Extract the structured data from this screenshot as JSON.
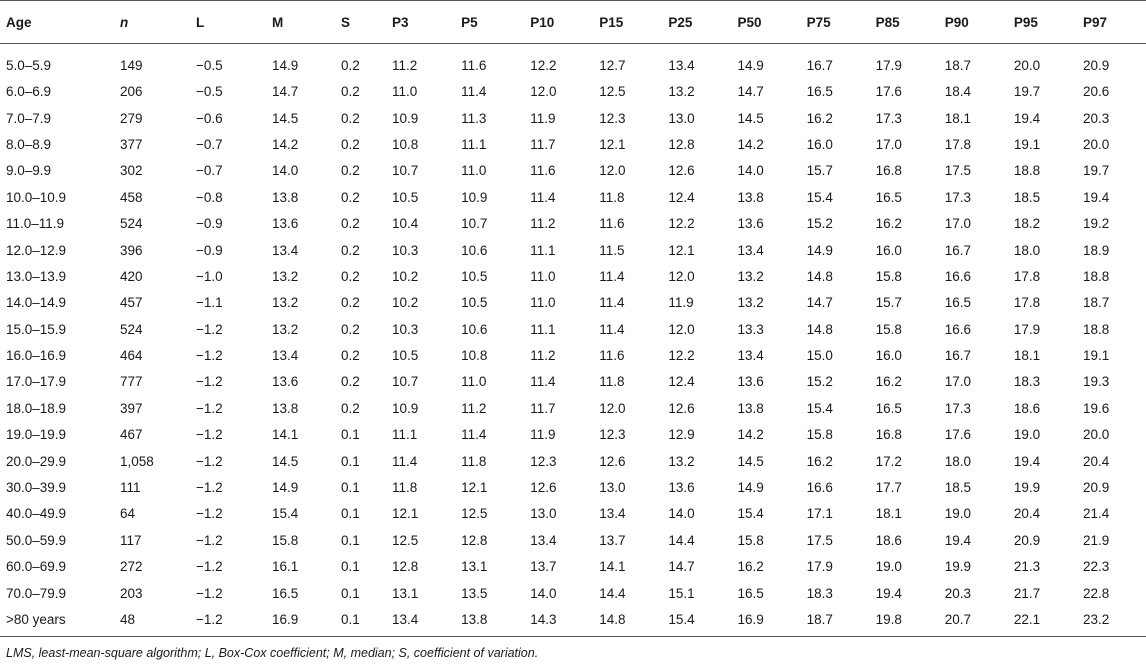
{
  "table": {
    "headers": [
      "Age",
      "n",
      "L",
      "M",
      "S",
      "P3",
      "P5",
      "P10",
      "P15",
      "P25",
      "P50",
      "P75",
      "P85",
      "P90",
      "P95",
      "P97"
    ],
    "rows": [
      [
        "5.0–5.9",
        "149",
        "−0.5",
        "14.9",
        "0.2",
        "11.2",
        "11.6",
        "12.2",
        "12.7",
        "13.4",
        "14.9",
        "16.7",
        "17.9",
        "18.7",
        "20.0",
        "20.9"
      ],
      [
        "6.0–6.9",
        "206",
        "−0.5",
        "14.7",
        "0.2",
        "11.0",
        "11.4",
        "12.0",
        "12.5",
        "13.2",
        "14.7",
        "16.5",
        "17.6",
        "18.4",
        "19.7",
        "20.6"
      ],
      [
        "7.0–7.9",
        "279",
        "−0.6",
        "14.5",
        "0.2",
        "10.9",
        "11.3",
        "11.9",
        "12.3",
        "13.0",
        "14.5",
        "16.2",
        "17.3",
        "18.1",
        "19.4",
        "20.3"
      ],
      [
        "8.0–8.9",
        "377",
        "−0.7",
        "14.2",
        "0.2",
        "10.8",
        "11.1",
        "11.7",
        "12.1",
        "12.8",
        "14.2",
        "16.0",
        "17.0",
        "17.8",
        "19.1",
        "20.0"
      ],
      [
        "9.0–9.9",
        "302",
        "−0.7",
        "14.0",
        "0.2",
        "10.7",
        "11.0",
        "11.6",
        "12.0",
        "12.6",
        "14.0",
        "15.7",
        "16.8",
        "17.5",
        "18.8",
        "19.7"
      ],
      [
        "10.0–10.9",
        "458",
        "−0.8",
        "13.8",
        "0.2",
        "10.5",
        "10.9",
        "11.4",
        "11.8",
        "12.4",
        "13.8",
        "15.4",
        "16.5",
        "17.3",
        "18.5",
        "19.4"
      ],
      [
        "11.0–11.9",
        "524",
        "−0.9",
        "13.6",
        "0.2",
        "10.4",
        "10.7",
        "11.2",
        "11.6",
        "12.2",
        "13.6",
        "15.2",
        "16.2",
        "17.0",
        "18.2",
        "19.2"
      ],
      [
        "12.0–12.9",
        "396",
        "−0.9",
        "13.4",
        "0.2",
        "10.3",
        "10.6",
        "11.1",
        "11.5",
        "12.1",
        "13.4",
        "14.9",
        "16.0",
        "16.7",
        "18.0",
        "18.9"
      ],
      [
        "13.0–13.9",
        "420",
        "−1.0",
        "13.2",
        "0.2",
        "10.2",
        "10.5",
        "11.0",
        "11.4",
        "12.0",
        "13.2",
        "14.8",
        "15.8",
        "16.6",
        "17.8",
        "18.8"
      ],
      [
        "14.0–14.9",
        "457",
        "−1.1",
        "13.2",
        "0.2",
        "10.2",
        "10.5",
        "11.0",
        "11.4",
        "11.9",
        "13.2",
        "14.7",
        "15.7",
        "16.5",
        "17.8",
        "18.7"
      ],
      [
        "15.0–15.9",
        "524",
        "−1.2",
        "13.2",
        "0.2",
        "10.3",
        "10.6",
        "11.1",
        "11.4",
        "12.0",
        "13.3",
        "14.8",
        "15.8",
        "16.6",
        "17.9",
        "18.8"
      ],
      [
        "16.0–16.9",
        "464",
        "−1.2",
        "13.4",
        "0.2",
        "10.5",
        "10.8",
        "11.2",
        "11.6",
        "12.2",
        "13.4",
        "15.0",
        "16.0",
        "16.7",
        "18.1",
        "19.1"
      ],
      [
        "17.0–17.9",
        "777",
        "−1.2",
        "13.6",
        "0.2",
        "10.7",
        "11.0",
        "11.4",
        "11.8",
        "12.4",
        "13.6",
        "15.2",
        "16.2",
        "17.0",
        "18.3",
        "19.3"
      ],
      [
        "18.0–18.9",
        "397",
        "−1.2",
        "13.8",
        "0.2",
        "10.9",
        "11.2",
        "11.7",
        "12.0",
        "12.6",
        "13.8",
        "15.4",
        "16.5",
        "17.3",
        "18.6",
        "19.6"
      ],
      [
        "19.0–19.9",
        "467",
        "−1.2",
        "14.1",
        "0.1",
        "11.1",
        "11.4",
        "11.9",
        "12.3",
        "12.9",
        "14.2",
        "15.8",
        "16.8",
        "17.6",
        "19.0",
        "20.0"
      ],
      [
        "20.0–29.9",
        "1,058",
        "−1.2",
        "14.5",
        "0.1",
        "11.4",
        "11.8",
        "12.3",
        "12.6",
        "13.2",
        "14.5",
        "16.2",
        "17.2",
        "18.0",
        "19.4",
        "20.4"
      ],
      [
        "30.0–39.9",
        "111",
        "−1.2",
        "14.9",
        "0.1",
        "11.8",
        "12.1",
        "12.6",
        "13.0",
        "13.6",
        "14.9",
        "16.6",
        "17.7",
        "18.5",
        "19.9",
        "20.9"
      ],
      [
        "40.0–49.9",
        "64",
        "−1.2",
        "15.4",
        "0.1",
        "12.1",
        "12.5",
        "13.0",
        "13.4",
        "14.0",
        "15.4",
        "17.1",
        "18.1",
        "19.0",
        "20.4",
        "21.4"
      ],
      [
        "50.0–59.9",
        "117",
        "−1.2",
        "15.8",
        "0.1",
        "12.5",
        "12.8",
        "13.4",
        "13.7",
        "14.4",
        "15.8",
        "17.5",
        "18.6",
        "19.4",
        "20.9",
        "21.9"
      ],
      [
        "60.0–69.9",
        "272",
        "−1.2",
        "16.1",
        "0.1",
        "12.8",
        "13.1",
        "13.7",
        "14.1",
        "14.7",
        "16.2",
        "17.9",
        "19.0",
        "19.9",
        "21.3",
        "22.3"
      ],
      [
        "70.0–79.9",
        "203",
        "−1.2",
        "16.5",
        "0.1",
        "13.1",
        "13.5",
        "14.0",
        "14.4",
        "15.1",
        "16.5",
        "18.3",
        "19.4",
        "20.3",
        "21.7",
        "22.8"
      ],
      [
        ">80 years",
        "48",
        "−1.2",
        "16.9",
        "0.1",
        "13.4",
        "13.8",
        "14.3",
        "14.8",
        "15.4",
        "16.9",
        "18.7",
        "19.8",
        "20.7",
        "22.1",
        "23.2"
      ]
    ]
  },
  "footnote": "LMS, least-mean-square algorithm; L, Box-Cox coefficient; M, median; S, coefficient of variation."
}
